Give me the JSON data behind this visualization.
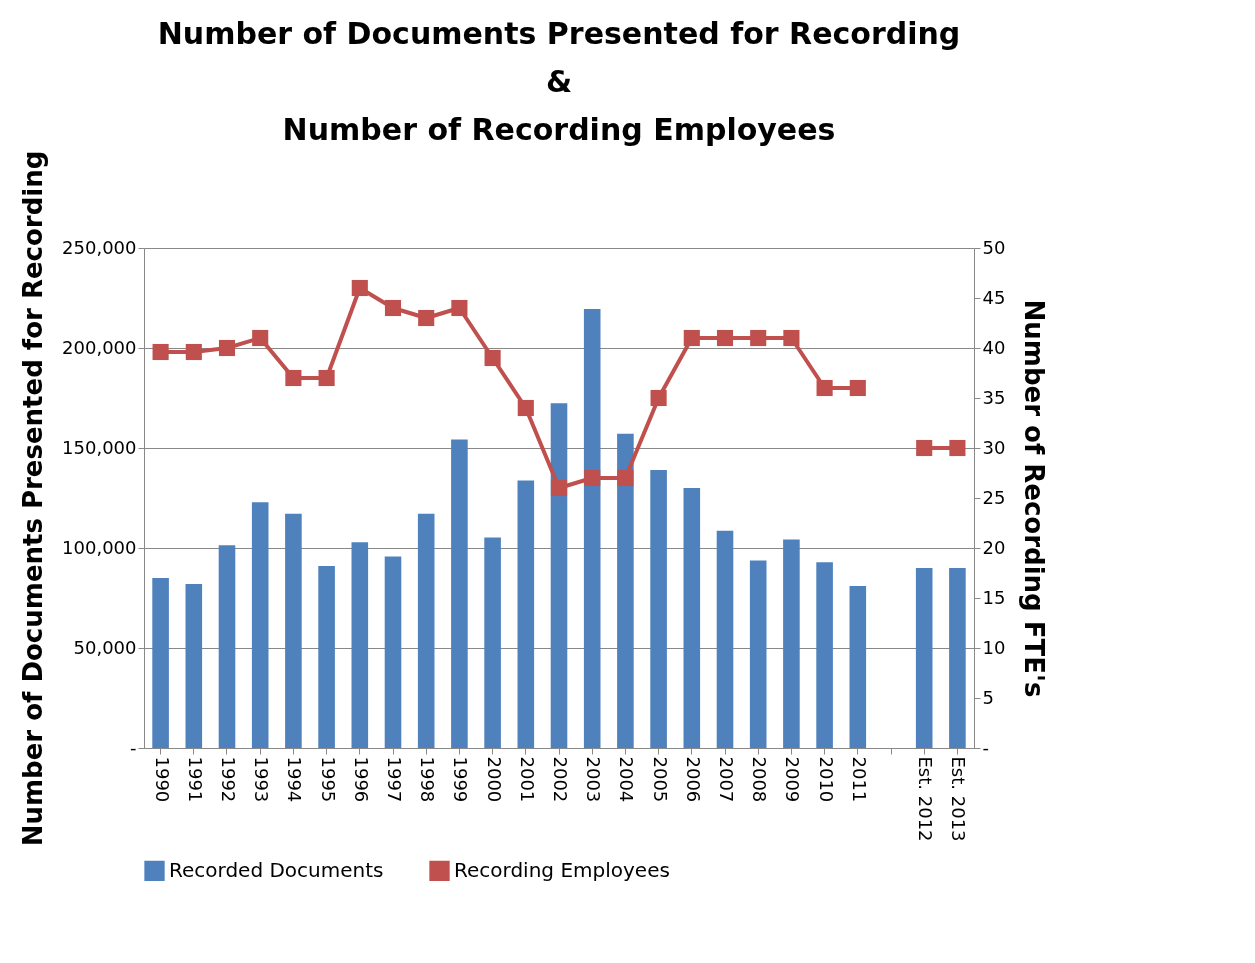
{
  "chart_data": {
    "type": "bar",
    "title": "Number of Documents Presented for Recording\n&\nNumber of Recording Employees",
    "ylabel": "Number of Documents Presented for Recording",
    "y2label": "Number of Recording FTE's",
    "categories": [
      "1990",
      "1991",
      "1992",
      "1993",
      "1994",
      "1995",
      "1996",
      "1997",
      "1998",
      "1999",
      "2000",
      "2001",
      "2002",
      "2003",
      "2004",
      "2005",
      "2006",
      "2007",
      "2008",
      "2009",
      "2010",
      "2011",
      null,
      "Est. 2012",
      "Est. 2013"
    ],
    "series": [
      {
        "name": "Recorded Documents",
        "color": "#4f81bd",
        "values": [
          85000,
          82000,
          101400,
          122900,
          117100,
          91000,
          102900,
          95700,
          117100,
          154300,
          105200,
          133800,
          172400,
          219500,
          157100,
          139000,
          130000,
          108600,
          93800,
          104300,
          92900,
          81000,
          null,
          90000,
          90000
        ]
      },
      {
        "name": "Recording Employees",
        "type": "line",
        "axis": "y2",
        "color": "#c0504d",
        "marker": "square",
        "line_style": "solid",
        "values": [
          39.6,
          39.6,
          40,
          41,
          37,
          37,
          46,
          44,
          43,
          44,
          39,
          34,
          26,
          27,
          27,
          35,
          41,
          41,
          41,
          41,
          36,
          36,
          null,
          30,
          30
        ]
      }
    ],
    "ylim": [
      0,
      250000
    ],
    "yticks": [
      {
        "value": 0,
        "label": "-"
      },
      {
        "value": 50000,
        "label": "50,000"
      },
      {
        "value": 100000,
        "label": "100,000"
      },
      {
        "value": 150000,
        "label": "150,000"
      },
      {
        "value": 200000,
        "label": "200,000"
      },
      {
        "value": 250000,
        "label": "250,000"
      }
    ],
    "y2lim": [
      0,
      50
    ],
    "y2ticks": [
      {
        "value": 0,
        "label": "-"
      },
      5,
      10,
      15,
      20,
      25,
      30,
      35,
      40,
      45,
      50
    ],
    "grid": "y",
    "legend": "bottom"
  }
}
